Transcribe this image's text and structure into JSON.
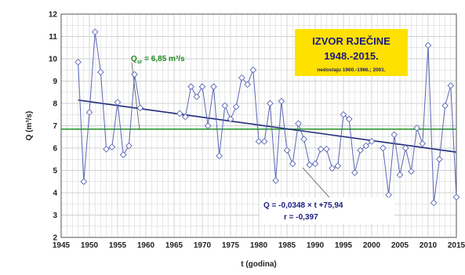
{
  "chart_data": {
    "type": "line",
    "title": "IZVOR RJEČINE",
    "subtitle": "1948.-2015.",
    "note": "nedostaju 1960.-1966.; 2001.",
    "xlabel": "t (godina)",
    "ylabel": "Q (m³/s)",
    "xlim": [
      1945,
      2015
    ],
    "ylim": [
      2,
      12
    ],
    "xticks": [
      1945,
      1950,
      1955,
      1960,
      1965,
      1970,
      1975,
      1980,
      1985,
      1990,
      1995,
      2000,
      2005,
      2010,
      2015
    ],
    "yticks": [
      2,
      3,
      4,
      5,
      6,
      7,
      8,
      9,
      10,
      11,
      12
    ],
    "grid": true,
    "series": [
      {
        "points": [
          [
            1948,
            9.85
          ],
          [
            1949,
            4.5
          ],
          [
            1950,
            7.6
          ],
          [
            1951,
            11.2
          ],
          [
            1952,
            9.4
          ],
          [
            1953,
            5.95
          ],
          [
            1954,
            6.05
          ],
          [
            1955,
            8.05
          ],
          [
            1956,
            5.7
          ],
          [
            1957,
            6.1
          ],
          [
            1958,
            9.3
          ],
          [
            1959,
            7.8
          ],
          [
            1966,
            7.55
          ],
          [
            1967,
            7.4
          ],
          [
            1968,
            8.75
          ],
          [
            1969,
            8.3
          ],
          [
            1970,
            8.75
          ],
          [
            1971,
            7.0
          ],
          [
            1972,
            8.75
          ],
          [
            1973,
            5.65
          ],
          [
            1974,
            7.9
          ],
          [
            1975,
            7.3
          ],
          [
            1976,
            7.85
          ],
          [
            1977,
            9.15
          ],
          [
            1978,
            8.85
          ],
          [
            1979,
            9.5
          ],
          [
            1980,
            6.3
          ],
          [
            1981,
            6.3
          ],
          [
            1982,
            8.0
          ],
          [
            1983,
            4.55
          ],
          [
            1984,
            8.1
          ],
          [
            1985,
            5.9
          ],
          [
            1986,
            5.3
          ],
          [
            1987,
            7.1
          ],
          [
            1988,
            6.4
          ],
          [
            1989,
            5.25
          ],
          [
            1990,
            5.3
          ],
          [
            1991,
            5.95
          ],
          [
            1992,
            5.95
          ],
          [
            1993,
            5.1
          ],
          [
            1994,
            5.2
          ],
          [
            1995,
            7.5
          ],
          [
            1996,
            7.3
          ],
          [
            1997,
            4.9
          ],
          [
            1998,
            5.9
          ],
          [
            1999,
            6.1
          ],
          [
            2000,
            6.3
          ],
          [
            2002,
            6.0
          ],
          [
            2003,
            3.9
          ],
          [
            2004,
            6.6
          ],
          [
            2005,
            4.8
          ],
          [
            2006,
            6.0
          ],
          [
            2007,
            4.95
          ],
          [
            2008,
            6.9
          ],
          [
            2009,
            6.2
          ],
          [
            2010,
            10.6
          ],
          [
            2011,
            3.55
          ],
          [
            2012,
            5.5
          ],
          [
            2013,
            7.9
          ],
          [
            2014,
            8.8
          ],
          [
            2015,
            3.8
          ]
        ]
      }
    ],
    "average": {
      "value": 6.85,
      "label_prefix": "Q",
      "label_sub": "sr",
      "label_rest": " = 6,85 m³/s"
    },
    "trend": {
      "intercept": 75.94,
      "slope": -0.0348,
      "equation": "Q = -0,0348 × t +75,94",
      "r": "r = -0,397"
    },
    "colors": {
      "series": "#5a66b5",
      "trend": "#1f2a7a",
      "average": "#2e9a2e",
      "grid": "#d0d0d0",
      "title_box": "#ffe100",
      "plot_bg": "#ffffff"
    }
  }
}
